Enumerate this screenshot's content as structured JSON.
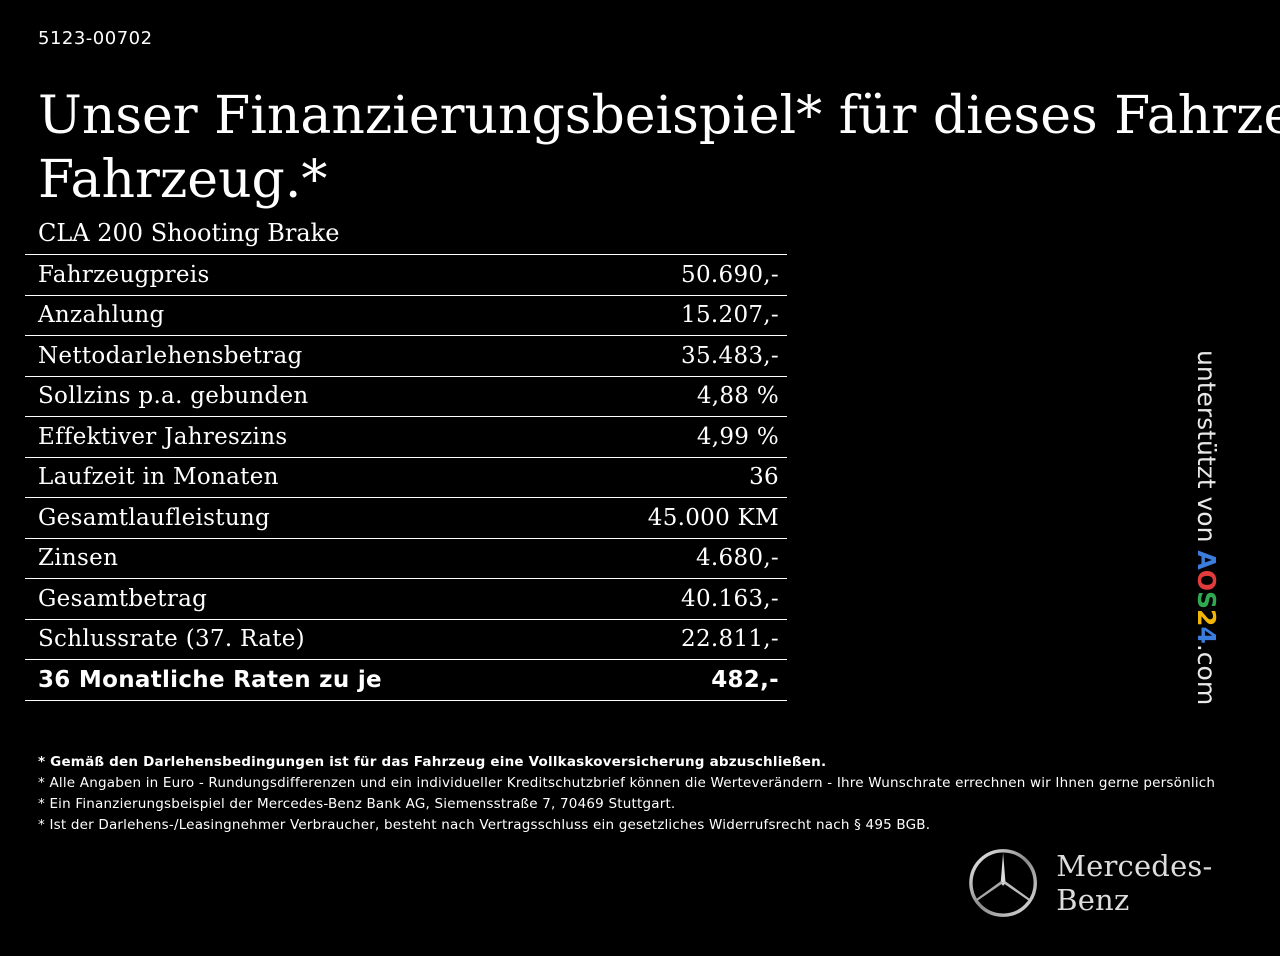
{
  "reference": "5123-00702",
  "headline": {
    "line1": "Unser Finanzierungsbeispiel* für dieses Fahrzeug:",
    "line2": "Fahrzeug.*"
  },
  "model": "CLA 200 Shooting Brake",
  "rows": [
    {
      "label": "Fahrzeugpreis",
      "value": "50.690,-"
    },
    {
      "label": "Anzahlung",
      "value": "15.207,-"
    },
    {
      "label": "Nettodarlehensbetrag",
      "value": "35.483,-"
    },
    {
      "label": "Sollzins p.a. gebunden",
      "value": "4,88 %"
    },
    {
      "label": "Effektiver Jahreszins",
      "value": "4,99 %"
    },
    {
      "label": "Laufzeit in Monaten",
      "value": "36"
    },
    {
      "label": "Gesamtlaufleistung",
      "value": "45.000 KM"
    },
    {
      "label": "Zinsen",
      "value": "4.680,-"
    },
    {
      "label": "Gesamtbetrag",
      "value": "40.163,-"
    },
    {
      "label": "Schlussrate (37. Rate)",
      "value": "22.811,-"
    }
  ],
  "total": {
    "label": "36 Monatliche Raten zu je",
    "value": "482,-"
  },
  "footnotes": [
    "* Gemäß den Darlehensbedingungen ist für das Fahrzeug eine Vollkaskoversicherung abzuschließen.",
    "* Alle Angaben in Euro - Rundungsdifferenzen und ein individueller Kreditschutzbrief können die Werteverändern - Ihre Wunschrate errechnen wir Ihnen gerne persönlich",
    "* Ein Finanzierungsbeispiel der Mercedes-Benz Bank AG, Siemensstraße 7, 70469 Stuttgart.",
    "* Ist der Darlehens-/Leasingnehmer Verbraucher, besteht nach Vertragsschluss ein gesetzliches Widerrufsrecht nach § 495 BGB."
  ],
  "sponsor": {
    "prefix": "unterstützt von",
    "logo_a": "A",
    "logo_o": "O",
    "logo_s": "S",
    "logo_2": "2",
    "logo_4": "4",
    "suffix": ".com"
  },
  "brand": {
    "name": "Mercedes-Benz",
    "logo_icon": "mercedes-star-icon"
  },
  "colors": {
    "background": "#000000",
    "text": "#ffffff"
  }
}
